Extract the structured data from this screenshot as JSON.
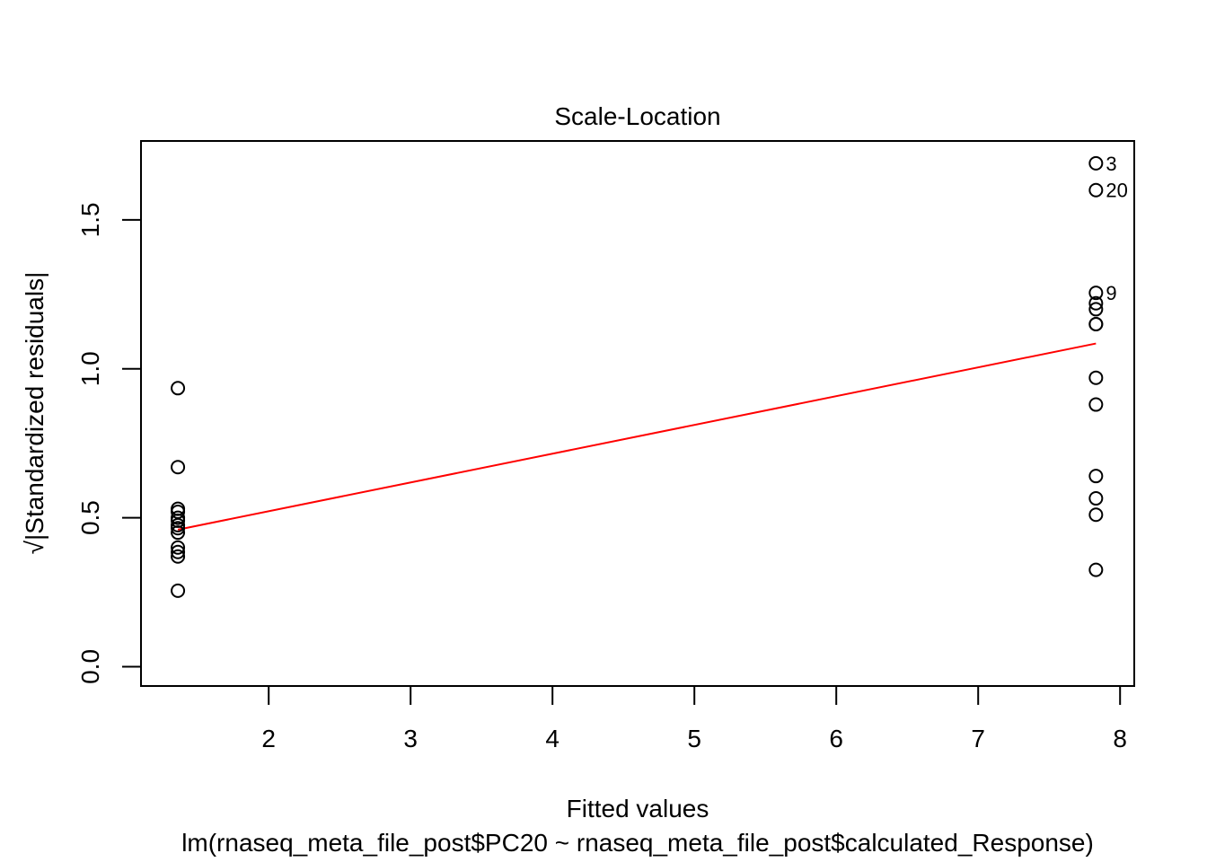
{
  "chart_data": {
    "type": "scatter",
    "title": "Scale-Location",
    "xlabel": "Fitted values",
    "ylabel": "√|Standardized residuals|",
    "subtitle": "lm(rnaseq_meta_file_post$PC20 ~ rnaseq_meta_file_post$calculated_Response)",
    "xlim": [
      1.1,
      8.1
    ],
    "ylim": [
      -0.065,
      1.765
    ],
    "x_ticks": [
      2,
      3,
      4,
      5,
      6,
      7,
      8
    ],
    "y_ticks": [
      0.0,
      0.5,
      1.0,
      1.5
    ],
    "x_tick_labels": [
      "2",
      "3",
      "4",
      "5",
      "6",
      "7",
      "8"
    ],
    "y_tick_labels": [
      "0.0",
      "0.5",
      "1.0",
      "1.5"
    ],
    "grid": false,
    "points": [
      {
        "x": 1.36,
        "y": 0.935
      },
      {
        "x": 1.36,
        "y": 0.67
      },
      {
        "x": 1.36,
        "y": 0.53
      },
      {
        "x": 1.36,
        "y": 0.52
      },
      {
        "x": 1.36,
        "y": 0.5
      },
      {
        "x": 1.36,
        "y": 0.49
      },
      {
        "x": 1.36,
        "y": 0.475
      },
      {
        "x": 1.36,
        "y": 0.465
      },
      {
        "x": 1.36,
        "y": 0.45
      },
      {
        "x": 1.36,
        "y": 0.4
      },
      {
        "x": 1.36,
        "y": 0.385
      },
      {
        "x": 1.36,
        "y": 0.37
      },
      {
        "x": 1.36,
        "y": 0.255
      },
      {
        "x": 7.83,
        "y": 1.69,
        "label": "3"
      },
      {
        "x": 7.83,
        "y": 1.6,
        "label": "20"
      },
      {
        "x": 7.83,
        "y": 1.255,
        "label": "9"
      },
      {
        "x": 7.83,
        "y": 1.22
      },
      {
        "x": 7.83,
        "y": 1.2
      },
      {
        "x": 7.83,
        "y": 1.15
      },
      {
        "x": 7.83,
        "y": 1.15
      },
      {
        "x": 7.83,
        "y": 0.97
      },
      {
        "x": 7.83,
        "y": 0.88
      },
      {
        "x": 7.83,
        "y": 0.64
      },
      {
        "x": 7.83,
        "y": 0.565
      },
      {
        "x": 7.83,
        "y": 0.51
      },
      {
        "x": 7.83,
        "y": 0.325
      }
    ],
    "smooth_line": {
      "color": "#ff0000",
      "points": [
        [
          1.36,
          0.46
        ],
        [
          7.83,
          1.085
        ]
      ]
    },
    "point_color": "#000000"
  }
}
